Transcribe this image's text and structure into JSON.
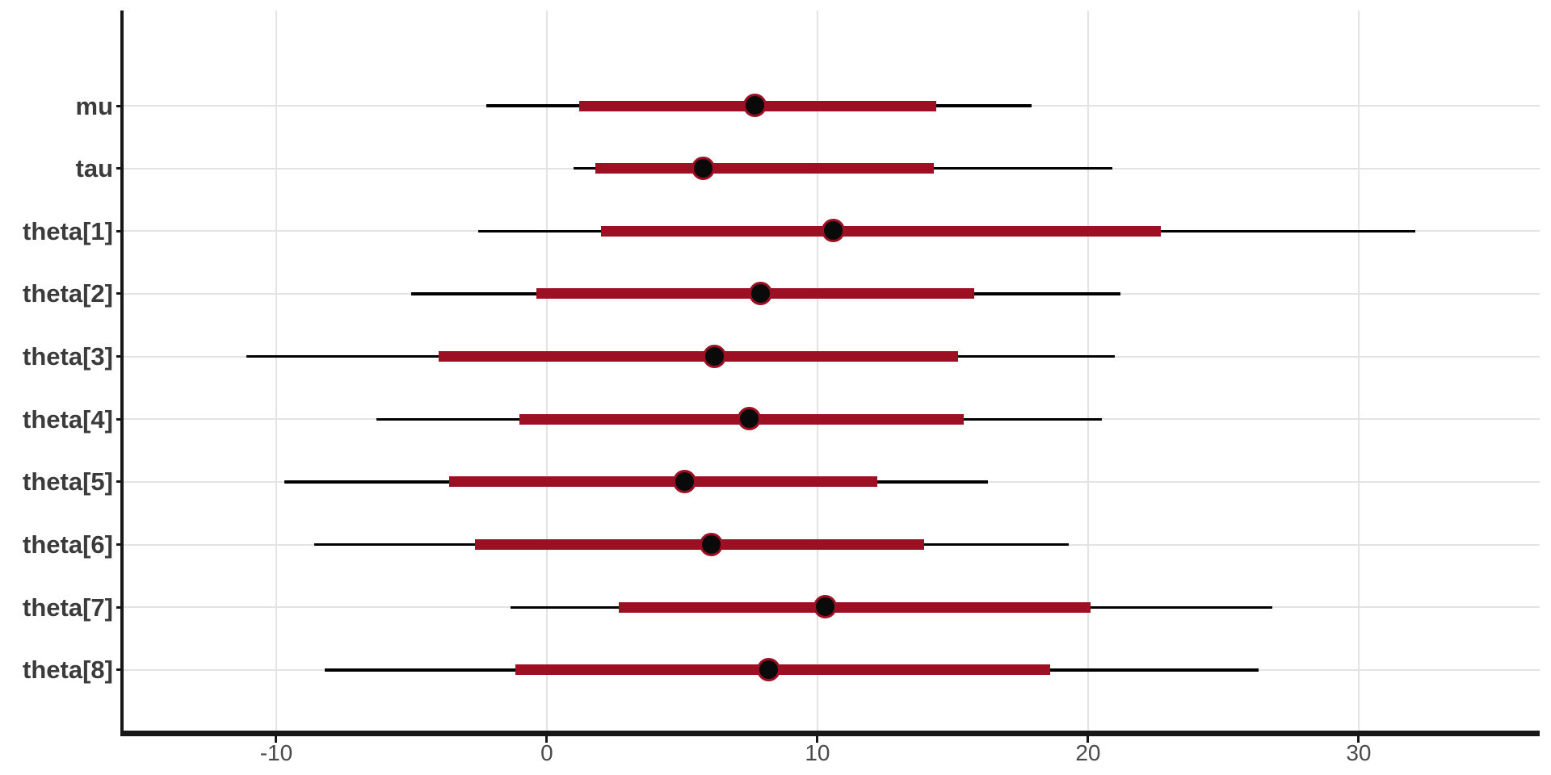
{
  "chart_data": {
    "type": "interval_forest",
    "title": "",
    "xlabel": "",
    "ylabel": "",
    "x_ticks": [
      -10,
      0,
      10,
      20,
      30
    ],
    "x_tick_labels": [
      "-10",
      "0",
      "10",
      "20",
      "30"
    ],
    "x_range": [
      -15.64,
      36.69
    ],
    "grid": true,
    "legend": false,
    "parameters": [
      {
        "name": "mu",
        "outer": [
          -2.25,
          17.9
        ],
        "inner": [
          1.2,
          14.4
        ],
        "median": 7.7
      },
      {
        "name": "tau",
        "outer": [
          1.0,
          20.9
        ],
        "inner": [
          1.8,
          14.3
        ],
        "median": 5.8
      },
      {
        "name": "theta[1]",
        "outer": [
          -2.55,
          32.1
        ],
        "inner": [
          2.0,
          22.7
        ],
        "median": 10.6
      },
      {
        "name": "theta[2]",
        "outer": [
          -5.0,
          21.2
        ],
        "inner": [
          -0.4,
          15.8
        ],
        "median": 7.9
      },
      {
        "name": "theta[3]",
        "outer": [
          -11.1,
          21.0
        ],
        "inner": [
          -4.0,
          15.2
        ],
        "median": 6.2
      },
      {
        "name": "theta[4]",
        "outer": [
          -6.3,
          20.5
        ],
        "inner": [
          -1.0,
          15.4
        ],
        "median": 7.5
      },
      {
        "name": "theta[5]",
        "outer": [
          -9.7,
          16.3
        ],
        "inner": [
          -3.6,
          12.2
        ],
        "median": 5.1
      },
      {
        "name": "theta[6]",
        "outer": [
          -8.6,
          19.3
        ],
        "inner": [
          -2.65,
          13.95
        ],
        "median": 6.1
      },
      {
        "name": "theta[7]",
        "outer": [
          -1.35,
          26.8
        ],
        "inner": [
          2.65,
          20.1
        ],
        "median": 10.3
      },
      {
        "name": "theta[8]",
        "outer": [
          -8.2,
          26.3
        ],
        "inner": [
          -1.15,
          18.6
        ],
        "median": 8.2
      }
    ],
    "colors": {
      "inner_bar": "#9D1023",
      "outer_line": "#000000",
      "dot_fill": "#0A0A0A",
      "dot_ring": "#9D1023",
      "grid": "#E3E3E3",
      "axis": "#171717",
      "row_label": "#3B3B3B",
      "tick_label": "#4A4A4A"
    }
  }
}
